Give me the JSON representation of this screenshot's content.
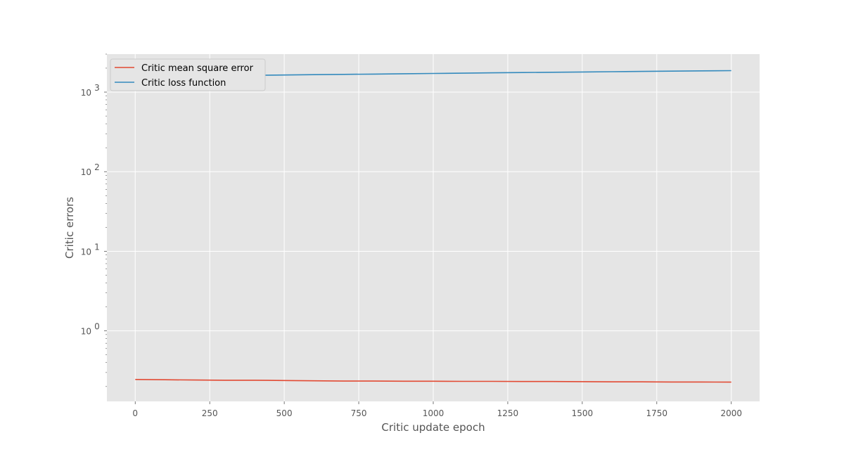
{
  "chart_data": {
    "type": "line",
    "title": "",
    "xlabel": "Critic update epoch",
    "ylabel": "Critic errors",
    "xlim": [
      -95,
      2095
    ],
    "ylim": [
      0.13,
      3000
    ],
    "yscale": "log",
    "grid": true,
    "legend_position": "top-left",
    "x_ticks": [
      0,
      250,
      500,
      750,
      1000,
      1250,
      1500,
      1750,
      2000
    ],
    "x_tick_labels": [
      "0",
      "250",
      "500",
      "750",
      "1000",
      "1250",
      "1500",
      "1750",
      "2000"
    ],
    "y_ticks": [
      1,
      10,
      100,
      1000
    ],
    "y_tick_labels": [
      {
        "base": "10",
        "exp": "0"
      },
      {
        "base": "10",
        "exp": "1"
      },
      {
        "base": "10",
        "exp": "2"
      },
      {
        "base": "10",
        "exp": "3"
      }
    ],
    "series": [
      {
        "name": "Critic mean square error",
        "color": "#e24a33",
        "x": [
          0,
          100,
          200,
          300,
          400,
          500,
          600,
          700,
          800,
          900,
          1000,
          1100,
          1200,
          1300,
          1400,
          1500,
          1600,
          1700,
          1800,
          1900,
          2000
        ],
        "y": [
          0.245,
          0.243,
          0.241,
          0.24,
          0.24,
          0.238,
          0.236,
          0.234,
          0.234,
          0.233,
          0.233,
          0.232,
          0.232,
          0.231,
          0.231,
          0.23,
          0.229,
          0.229,
          0.228,
          0.228,
          0.227
        ]
      },
      {
        "name": "Critic loss function",
        "color": "#348abd",
        "x": [
          0,
          100,
          200,
          300,
          400,
          500,
          600,
          700,
          800,
          900,
          1000,
          1100,
          1200,
          1300,
          1400,
          1500,
          1600,
          1700,
          1800,
          1900,
          2000
        ],
        "y": [
          1580,
          1590,
          1600,
          1610,
          1625,
          1640,
          1655,
          1670,
          1685,
          1700,
          1715,
          1730,
          1745,
          1760,
          1775,
          1790,
          1805,
          1820,
          1835,
          1850,
          1860
        ]
      }
    ]
  }
}
